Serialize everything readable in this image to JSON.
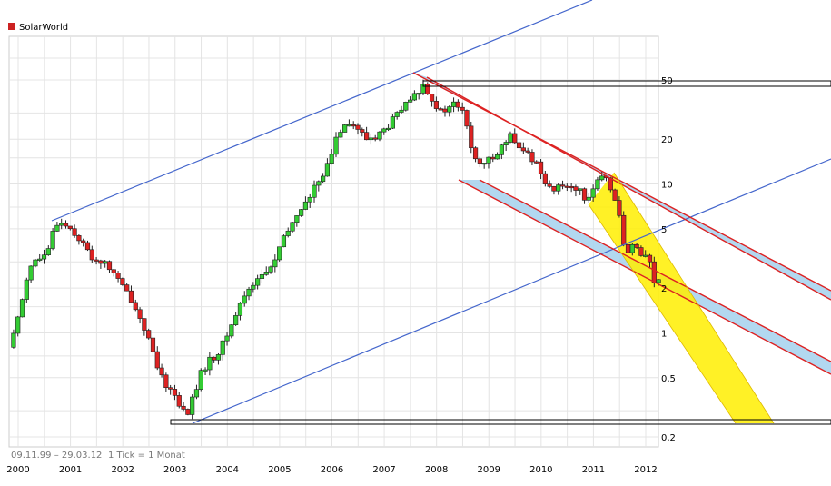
{
  "legend": {
    "swatch_color": "#cc2222",
    "label": "SolarWorld"
  },
  "footer": {
    "range": "09.11.99 – 29.03.12",
    "tick_info": "1 Tick = 1 Monat"
  },
  "colors": {
    "up": "#33cc33",
    "down": "#dd2222",
    "blue_channel": "#4466cc",
    "red_channel": "#dd2222",
    "channel_fill": "#aad4ee",
    "yellow_channel": "#ffee00"
  },
  "chart_data": {
    "type": "candlestick",
    "title": "SolarWorld",
    "y_scale": "log",
    "ylim": [
      0.16,
      80
    ],
    "xlim": [
      2000.0,
      2012.25
    ],
    "y_ticks": [
      {
        "value": 50,
        "label": "50"
      },
      {
        "value": 20,
        "label": "20"
      },
      {
        "value": 10,
        "label": "10"
      },
      {
        "value": 5,
        "label": "5"
      },
      {
        "value": 2,
        "label": "2"
      },
      {
        "value": 1,
        "label": "1"
      },
      {
        "value": 0.5,
        "label": "0,5"
      },
      {
        "value": 0.2,
        "label": "0,2"
      }
    ],
    "x_ticks": [
      {
        "value": 2000,
        "label": "2000"
      },
      {
        "value": 2001,
        "label": "2001"
      },
      {
        "value": 2002,
        "label": "2002"
      },
      {
        "value": 2003,
        "label": "2003"
      },
      {
        "value": 2004,
        "label": "2004"
      },
      {
        "value": 2005,
        "label": "2005"
      },
      {
        "value": 2006,
        "label": "2006"
      },
      {
        "value": 2007,
        "label": "2007"
      },
      {
        "value": 2008,
        "label": "2008"
      },
      {
        "value": 2009,
        "label": "2009"
      },
      {
        "value": 2010,
        "label": "2010"
      },
      {
        "value": 2011,
        "label": "2011"
      },
      {
        "value": 2012,
        "label": "2012"
      }
    ],
    "grid": true,
    "interval": "monthly",
    "approx_closes": [
      [
        1999.9,
        0.8
      ],
      [
        2000.1,
        1.6
      ],
      [
        2000.25,
        2.8
      ],
      [
        2000.4,
        3.1
      ],
      [
        2000.6,
        3.3
      ],
      [
        2000.75,
        5.5
      ],
      [
        2000.95,
        5.4
      ],
      [
        2001.1,
        4.8
      ],
      [
        2001.25,
        4.1
      ],
      [
        2001.45,
        3.2
      ],
      [
        2001.65,
        3.0
      ],
      [
        2001.85,
        2.6
      ],
      [
        2002.05,
        2.0
      ],
      [
        2002.2,
        1.7
      ],
      [
        2002.35,
        1.3
      ],
      [
        2002.5,
        1.0
      ],
      [
        2002.65,
        0.65
      ],
      [
        2002.8,
        0.48
      ],
      [
        2002.95,
        0.42
      ],
      [
        2003.1,
        0.35
      ],
      [
        2003.25,
        0.27
      ],
      [
        2003.4,
        0.38
      ],
      [
        2003.55,
        0.55
      ],
      [
        2003.7,
        0.65
      ],
      [
        2003.85,
        0.72
      ],
      [
        2004.0,
        0.9
      ],
      [
        2004.15,
        1.2
      ],
      [
        2004.3,
        1.6
      ],
      [
        2004.45,
        2.0
      ],
      [
        2004.6,
        2.3
      ],
      [
        2004.75,
        2.5
      ],
      [
        2004.9,
        2.8
      ],
      [
        2005.05,
        3.8
      ],
      [
        2005.25,
        5.2
      ],
      [
        2005.45,
        7.0
      ],
      [
        2005.6,
        7.8
      ],
      [
        2005.8,
        11.0
      ],
      [
        2006.0,
        14.0
      ],
      [
        2006.1,
        20.0
      ],
      [
        2006.3,
        27.0
      ],
      [
        2006.5,
        24.0
      ],
      [
        2006.7,
        20.0
      ],
      [
        2006.9,
        21.0
      ],
      [
        2007.1,
        24.0
      ],
      [
        2007.3,
        30.0
      ],
      [
        2007.5,
        35.0
      ],
      [
        2007.7,
        42.0
      ],
      [
        2007.8,
        47.0
      ],
      [
        2007.95,
        38.0
      ],
      [
        2008.1,
        30.0
      ],
      [
        2008.25,
        32.0
      ],
      [
        2008.4,
        35.0
      ],
      [
        2008.55,
        30.0
      ],
      [
        2008.7,
        18.0
      ],
      [
        2008.85,
        13.0
      ],
      [
        2009.0,
        14.0
      ],
      [
        2009.15,
        16.0
      ],
      [
        2009.3,
        18.0
      ],
      [
        2009.45,
        21.0
      ],
      [
        2009.6,
        17.0
      ],
      [
        2009.8,
        16.0
      ],
      [
        2010.0,
        13.0
      ],
      [
        2010.15,
        10.0
      ],
      [
        2010.3,
        9.0
      ],
      [
        2010.5,
        10.0
      ],
      [
        2010.7,
        9.5
      ],
      [
        2010.9,
        8.0
      ],
      [
        2011.05,
        9.5
      ],
      [
        2011.2,
        11.0
      ],
      [
        2011.35,
        10.0
      ],
      [
        2011.5,
        7.5
      ],
      [
        2011.65,
        3.2
      ],
      [
        2011.8,
        3.8
      ],
      [
        2011.95,
        3.5
      ],
      [
        2012.1,
        3.2
      ],
      [
        2012.2,
        2.2
      ]
    ]
  }
}
